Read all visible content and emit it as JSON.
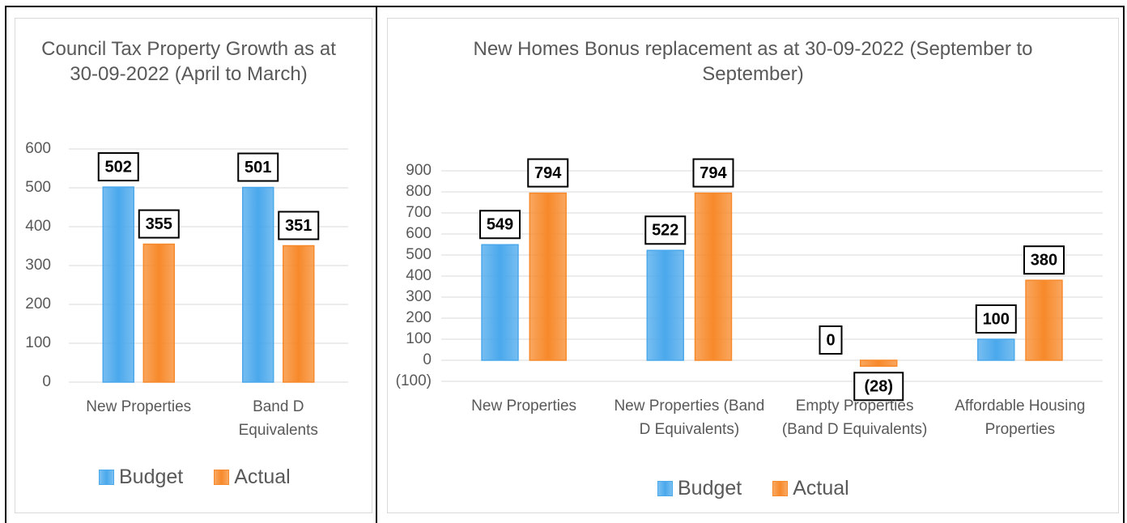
{
  "chart_data": [
    {
      "type": "bar",
      "title": "Council Tax Property Growth as at 30-09-2022 (April to March)",
      "categories": [
        "New Properties",
        "Band D Equivalents"
      ],
      "series": [
        {
          "name": "Budget",
          "color": "#4aa8ec",
          "values": [
            502,
            501
          ]
        },
        {
          "name": "Actual",
          "color": "#f7892a",
          "values": [
            355,
            351
          ]
        }
      ],
      "ylim": [
        0,
        600
      ],
      "yticks": [
        0,
        100,
        200,
        300,
        400,
        500,
        600
      ],
      "grid": true,
      "legend": "bottom"
    },
    {
      "type": "bar",
      "title": "New Homes Bonus replacement as at 30-09-2022 (September to September)",
      "categories": [
        "New Properties",
        "New Properties (Band D Equivalents)",
        "Empty Properties (Band D Equivalents)",
        "Affordable Housing Properties"
      ],
      "series": [
        {
          "name": "Budget",
          "color": "#4aa8ec",
          "values": [
            549,
            522,
            0,
            100
          ]
        },
        {
          "name": "Actual",
          "color": "#f7892a",
          "values": [
            794,
            794,
            -28,
            380
          ],
          "value_labels": [
            "794",
            "794",
            "(28)",
            "380"
          ]
        }
      ],
      "ylim": [
        -100,
        900
      ],
      "yticks": [
        {
          "value": -100,
          "label": "(100)"
        },
        0,
        100,
        200,
        300,
        400,
        500,
        600,
        700,
        800,
        900
      ],
      "grid": true,
      "legend": "bottom"
    }
  ]
}
